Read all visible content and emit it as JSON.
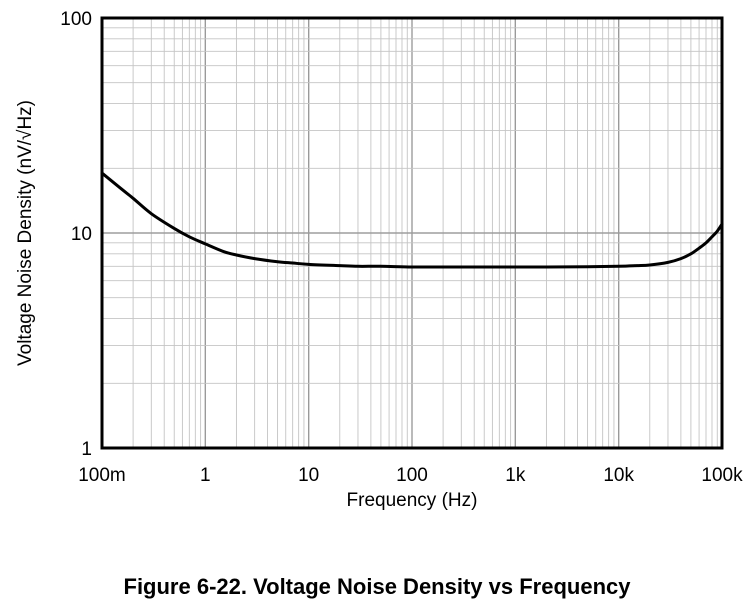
{
  "chart_data": {
    "type": "line",
    "title": "",
    "xlabel": "Frequency (Hz)",
    "ylabel": "Voltage Noise Density (nV/√Hz)",
    "xscale": "log",
    "yscale": "log",
    "xlim": [
      0.1,
      100000
    ],
    "ylim": [
      1,
      100
    ],
    "grid": true,
    "legend": "none",
    "xticks": [
      {
        "value": 0.1,
        "label": "100m"
      },
      {
        "value": 1,
        "label": "1"
      },
      {
        "value": 10,
        "label": "10"
      },
      {
        "value": 100,
        "label": "100"
      },
      {
        "value": 1000,
        "label": "1k"
      },
      {
        "value": 10000,
        "label": "10k"
      },
      {
        "value": 100000,
        "label": "100k"
      }
    ],
    "yticks": [
      {
        "value": 1,
        "label": "1"
      },
      {
        "value": 10,
        "label": "10"
      },
      {
        "value": 100,
        "label": "100"
      }
    ],
    "series": [
      {
        "name": "Voltage Noise Density",
        "color": "#000000",
        "x": [
          0.1,
          0.15,
          0.2,
          0.3,
          0.5,
          0.7,
          1,
          1.5,
          2,
          3,
          5,
          7,
          10,
          20,
          30,
          50,
          100,
          200,
          500,
          1000,
          2000,
          5000,
          10000,
          15000,
          20000,
          30000,
          40000,
          50000,
          60000,
          70000,
          80000,
          90000,
          100000
        ],
        "values": [
          19.0,
          16.2,
          14.5,
          12.3,
          10.5,
          9.6,
          8.9,
          8.2,
          7.9,
          7.6,
          7.35,
          7.25,
          7.15,
          7.05,
          7.0,
          7.0,
          6.95,
          6.95,
          6.95,
          6.95,
          6.95,
          6.97,
          7.0,
          7.05,
          7.1,
          7.3,
          7.6,
          8.0,
          8.5,
          9.0,
          9.6,
          10.2,
          11.0
        ]
      }
    ]
  },
  "caption": "Figure 6-22. Voltage Noise Density vs Frequency"
}
